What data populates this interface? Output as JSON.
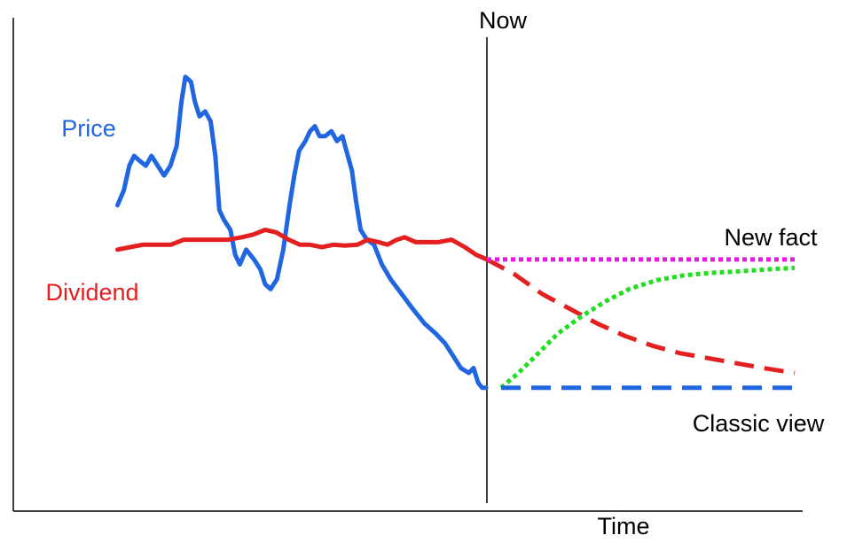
{
  "chart_data": {
    "type": "line",
    "title": "",
    "xlabel": "Time",
    "ylabel": "",
    "grid": false,
    "legend": "none",
    "x_range": [
      0,
      100
    ],
    "y_range": [
      0,
      100
    ],
    "marker": {
      "label": "Now",
      "x": 60
    },
    "labels": {
      "price": "Price",
      "dividend": "Dividend",
      "new_fact": "New fact",
      "classic_view": "Classic view"
    },
    "series": [
      {
        "name": "Price",
        "color": "#1f66e0",
        "style": "solid",
        "points": [
          [
            13.2,
            62
          ],
          [
            14.0,
            65
          ],
          [
            14.7,
            70
          ],
          [
            15.3,
            72
          ],
          [
            16.0,
            71
          ],
          [
            16.8,
            70
          ],
          [
            17.5,
            72
          ],
          [
            18.3,
            70
          ],
          [
            19.1,
            68
          ],
          [
            19.9,
            70
          ],
          [
            20.7,
            74
          ],
          [
            21.3,
            83
          ],
          [
            21.8,
            88
          ],
          [
            22.5,
            87
          ],
          [
            23.0,
            83
          ],
          [
            23.6,
            80
          ],
          [
            24.3,
            81
          ],
          [
            25.0,
            79
          ],
          [
            25.6,
            72
          ],
          [
            26.1,
            61
          ],
          [
            26.7,
            59
          ],
          [
            27.5,
            57
          ],
          [
            28.1,
            52
          ],
          [
            28.7,
            50
          ],
          [
            29.5,
            53
          ],
          [
            30.5,
            51
          ],
          [
            31.3,
            49
          ],
          [
            31.9,
            46
          ],
          [
            32.6,
            45
          ],
          [
            33.4,
            47
          ],
          [
            34.2,
            53
          ],
          [
            35.0,
            62
          ],
          [
            35.6,
            68
          ],
          [
            36.2,
            73
          ],
          [
            37.0,
            75
          ],
          [
            37.6,
            77
          ],
          [
            38.2,
            78
          ],
          [
            38.8,
            76
          ],
          [
            39.5,
            76
          ],
          [
            40.3,
            77
          ],
          [
            41.0,
            75
          ],
          [
            41.7,
            76
          ],
          [
            42.2,
            73
          ],
          [
            42.9,
            69
          ],
          [
            43.4,
            63
          ],
          [
            44.0,
            57
          ],
          [
            44.8,
            55
          ],
          [
            45.7,
            54
          ],
          [
            46.7,
            50
          ],
          [
            47.8,
            47
          ],
          [
            49.2,
            44
          ],
          [
            50.6,
            41
          ],
          [
            52.1,
            38
          ],
          [
            53.5,
            36
          ],
          [
            54.7,
            34
          ],
          [
            55.9,
            31
          ],
          [
            56.7,
            29
          ],
          [
            57.7,
            28
          ],
          [
            58.3,
            29
          ],
          [
            58.9,
            26
          ],
          [
            59.4,
            25
          ],
          [
            59.9,
            25
          ]
        ]
      },
      {
        "name": "Dividend",
        "color": "#e41f1f",
        "style": "solid",
        "points": [
          [
            13.2,
            53
          ],
          [
            14.8,
            53.5
          ],
          [
            16.5,
            54
          ],
          [
            18.2,
            54
          ],
          [
            20.0,
            54
          ],
          [
            21.6,
            55
          ],
          [
            23.5,
            55
          ],
          [
            25.3,
            55
          ],
          [
            27.2,
            55
          ],
          [
            28.9,
            55.5
          ],
          [
            30.3,
            56
          ],
          [
            31.9,
            57
          ],
          [
            33.3,
            56.5
          ],
          [
            34.9,
            55
          ],
          [
            36.3,
            54
          ],
          [
            37.5,
            54
          ],
          [
            39.1,
            53.5
          ],
          [
            40.6,
            54
          ],
          [
            42.0,
            53.8
          ],
          [
            43.6,
            54
          ],
          [
            44.9,
            55
          ],
          [
            46.3,
            54.5
          ],
          [
            47.4,
            54
          ],
          [
            48.6,
            55
          ],
          [
            49.6,
            55.5
          ],
          [
            51.0,
            54.5
          ],
          [
            52.4,
            54.5
          ],
          [
            53.8,
            54.5
          ],
          [
            55.5,
            55
          ],
          [
            57.2,
            53.5
          ],
          [
            58.6,
            52
          ],
          [
            60.0,
            51
          ]
        ]
      },
      {
        "name": "Dividend projection",
        "color": "#e41f1f",
        "style": "dashed",
        "points": [
          [
            60.0,
            51
          ],
          [
            63.5,
            48
          ],
          [
            67.0,
            44
          ],
          [
            70.5,
            41
          ],
          [
            74.0,
            38
          ],
          [
            77.5,
            35.5
          ],
          [
            81.0,
            33.5
          ],
          [
            84.5,
            32
          ],
          [
            88.0,
            31
          ],
          [
            91.5,
            30
          ],
          [
            95.0,
            29
          ],
          [
            99.0,
            28
          ]
        ]
      },
      {
        "name": "New fact",
        "color": "#e619e6",
        "style": "dotted",
        "points": [
          [
            60.0,
            51
          ],
          [
            99.0,
            51
          ]
        ]
      },
      {
        "name": "New fact price path",
        "color": "#22dd22",
        "style": "dotted",
        "points": [
          [
            61.8,
            25
          ],
          [
            64.0,
            28
          ],
          [
            66.5,
            32
          ],
          [
            69.0,
            36
          ],
          [
            72.0,
            39.5
          ],
          [
            75.0,
            42.5
          ],
          [
            78.0,
            45
          ],
          [
            81.5,
            46.8
          ],
          [
            85.0,
            47.8
          ],
          [
            88.5,
            48.3
          ],
          [
            92.0,
            48.6
          ],
          [
            95.5,
            49
          ],
          [
            99.0,
            49.3
          ]
        ]
      },
      {
        "name": "Classic view",
        "color": "#1f66e0",
        "style": "dashed",
        "points": [
          [
            61.8,
            25
          ],
          [
            99.0,
            25
          ]
        ]
      }
    ]
  }
}
